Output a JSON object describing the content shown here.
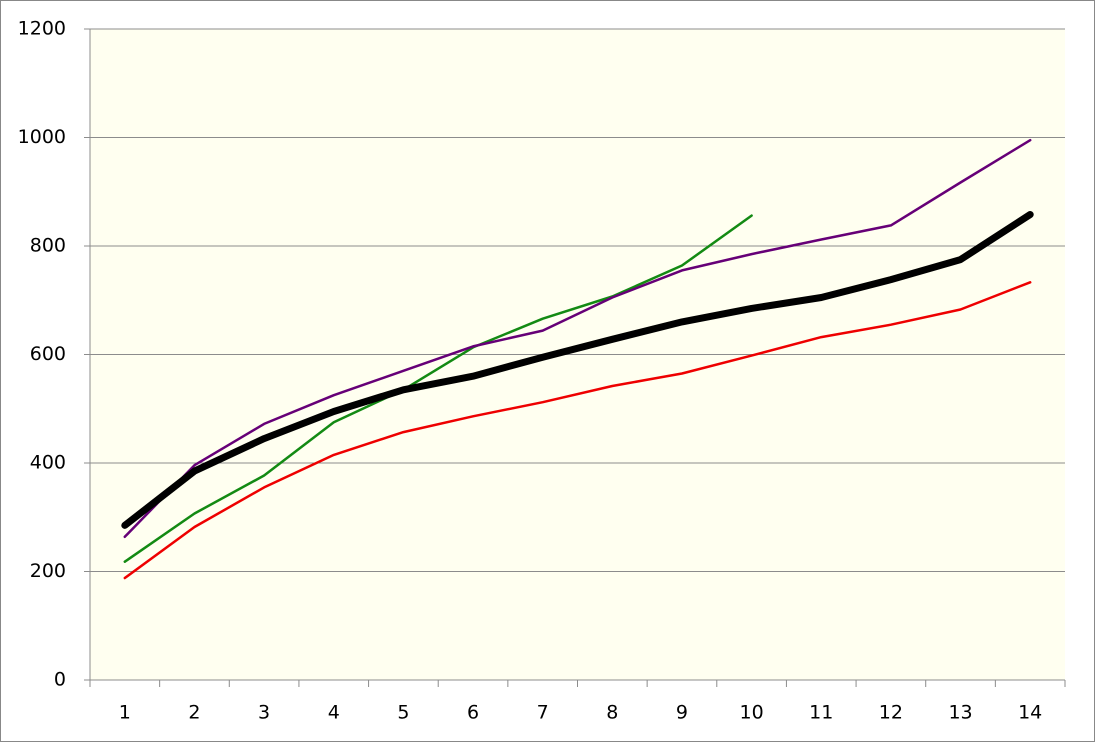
{
  "chart_data": {
    "type": "line",
    "categories": [
      "1",
      "2",
      "3",
      "4",
      "5",
      "6",
      "7",
      "8",
      "9",
      "10",
      "11",
      "12",
      "13",
      "14"
    ],
    "series": [
      {
        "color": "#ee0000",
        "width": 2.5,
        "values": [
          188,
          282,
          355,
          415,
          457,
          486,
          512,
          542,
          565,
          598,
          632,
          655,
          683,
          733
        ]
      },
      {
        "color": "#138a13",
        "width": 2.5,
        "values": [
          218,
          307,
          377,
          475,
          535,
          613,
          666,
          707,
          764,
          856,
          null,
          null,
          null,
          null
        ]
      },
      {
        "color": "#660077",
        "width": 2.5,
        "values": [
          264,
          396,
          472,
          525,
          570,
          615,
          644,
          705,
          755,
          785,
          812,
          838,
          917,
          995
        ]
      },
      {
        "color": "#000000",
        "width": 7,
        "values": [
          285,
          385,
          445,
          495,
          535,
          560,
          595,
          628,
          660,
          685,
          705,
          738,
          775,
          858
        ]
      }
    ],
    "ylim": [
      0,
      1200
    ],
    "yticks": [
      0,
      200,
      400,
      600,
      800,
      1000,
      1200
    ],
    "grid": true
  }
}
